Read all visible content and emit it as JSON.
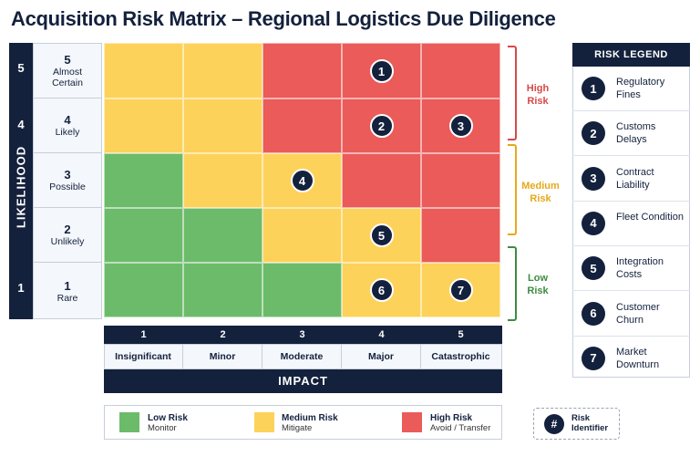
{
  "title": "Acquisition Risk Matrix – Regional Logistics Due Diligence",
  "likelihood": {
    "axis_title": "LIKELIHOOD",
    "levels": [
      {
        "num": "5",
        "label": "Almost Certain"
      },
      {
        "num": "4",
        "label": "Likely"
      },
      {
        "num": "3",
        "label": "Possible"
      },
      {
        "num": "2",
        "label": "Unlikely"
      },
      {
        "num": "1",
        "label": "Rare"
      }
    ]
  },
  "impact": {
    "axis_title": "IMPACT",
    "levels": [
      {
        "num": "1",
        "label": "Insignificant"
      },
      {
        "num": "2",
        "label": "Minor"
      },
      {
        "num": "3",
        "label": "Moderate"
      },
      {
        "num": "4",
        "label": "Major"
      },
      {
        "num": "5",
        "label": "Catastrophic"
      }
    ]
  },
  "matrix": [
    [
      "y",
      "y",
      "r",
      "r",
      "r"
    ],
    [
      "y",
      "y",
      "r",
      "r",
      "r"
    ],
    [
      "g",
      "y",
      "y",
      "r",
      "r"
    ],
    [
      "g",
      "g",
      "y",
      "y",
      "r"
    ],
    [
      "g",
      "g",
      "g",
      "y",
      "y"
    ]
  ],
  "risks": [
    {
      "id": "1",
      "likelihood": 5,
      "impact": 4
    },
    {
      "id": "2",
      "likelihood": 4,
      "impact": 4
    },
    {
      "id": "3",
      "likelihood": 4,
      "impact": 5
    },
    {
      "id": "4",
      "likelihood": 3,
      "impact": 3
    },
    {
      "id": "5",
      "likelihood": 2,
      "impact": 4
    },
    {
      "id": "6",
      "likelihood": 1,
      "impact": 4
    },
    {
      "id": "7",
      "likelihood": 1,
      "impact": 5
    }
  ],
  "zones": {
    "high": "High Risk",
    "medium": "Medium Risk",
    "low": "Low Risk"
  },
  "key": {
    "low": {
      "title": "Low Risk",
      "action": "Monitor"
    },
    "medium": {
      "title": "Medium Risk",
      "action": "Mitigate"
    },
    "high": {
      "title": "High Risk",
      "action": "Avoid / Transfer"
    },
    "identifier_symbol": "#",
    "identifier_label": "Risk Identifier"
  },
  "legend": {
    "title": "RISK LEGEND",
    "items": [
      {
        "id": "1",
        "label": "Regulatory Fines"
      },
      {
        "id": "2",
        "label": "Customs Delays"
      },
      {
        "id": "3",
        "label": "Contract Liability"
      },
      {
        "id": "4",
        "label": "Fleet Condition"
      },
      {
        "id": "5",
        "label": "Integration Costs"
      },
      {
        "id": "6",
        "label": "Customer Churn"
      },
      {
        "id": "7",
        "label": "Market Downturn"
      }
    ]
  },
  "colors": {
    "navy": "#14213d",
    "low": "#6cbb6a",
    "medium": "#fdd25a",
    "high": "#ea5b59",
    "high_text": "#d94848",
    "medium_text": "#e5a91a",
    "low_text": "#3d8c3f"
  }
}
